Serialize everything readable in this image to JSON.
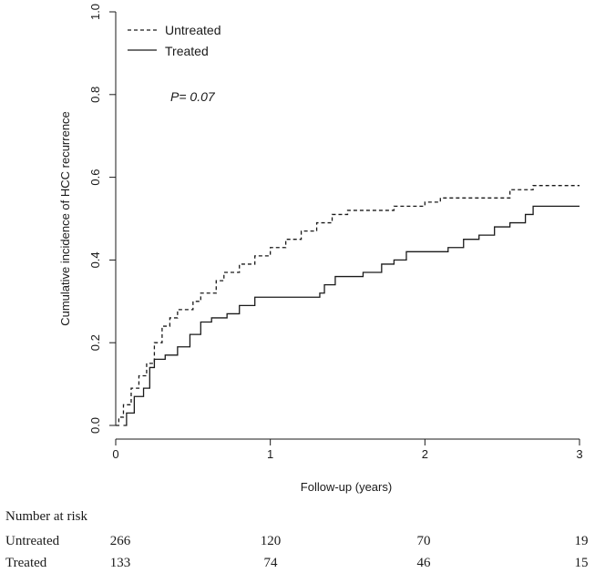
{
  "chart_data": {
    "type": "line",
    "xlabel": "Follow-up (years)",
    "ylabel": "Cumulative incidence of HCC recurrence",
    "xlim": [
      0,
      3
    ],
    "ylim": [
      0,
      1.0
    ],
    "x_ticks": [
      0,
      1,
      2,
      3
    ],
    "y_ticks": [
      0.0,
      0.2,
      0.4,
      0.6,
      0.8,
      1.0
    ],
    "x_tick_labels": [
      "0",
      "1",
      "2",
      "3"
    ],
    "y_tick_labels": [
      "0.0",
      "0.2",
      "0.4",
      "0.6",
      "0.8",
      "1.0"
    ],
    "grid": false,
    "legend_position": "top-left",
    "annotation": "P= 0.07",
    "series": [
      {
        "name": "Untreated",
        "line_style": "dashed",
        "points": [
          [
            0.0,
            0.0
          ],
          [
            0.02,
            0.02
          ],
          [
            0.05,
            0.05
          ],
          [
            0.1,
            0.09
          ],
          [
            0.15,
            0.12
          ],
          [
            0.2,
            0.15
          ],
          [
            0.25,
            0.2
          ],
          [
            0.3,
            0.24
          ],
          [
            0.35,
            0.26
          ],
          [
            0.4,
            0.28
          ],
          [
            0.5,
            0.3
          ],
          [
            0.55,
            0.32
          ],
          [
            0.65,
            0.35
          ],
          [
            0.7,
            0.37
          ],
          [
            0.8,
            0.39
          ],
          [
            0.9,
            0.41
          ],
          [
            1.0,
            0.43
          ],
          [
            1.1,
            0.45
          ],
          [
            1.2,
            0.47
          ],
          [
            1.3,
            0.49
          ],
          [
            1.4,
            0.51
          ],
          [
            1.5,
            0.52
          ],
          [
            1.6,
            0.52
          ],
          [
            1.8,
            0.53
          ],
          [
            1.95,
            0.53
          ],
          [
            2.0,
            0.54
          ],
          [
            2.1,
            0.55
          ],
          [
            2.35,
            0.55
          ],
          [
            2.5,
            0.55
          ],
          [
            2.55,
            0.57
          ],
          [
            2.7,
            0.58
          ],
          [
            3.0,
            0.58
          ]
        ]
      },
      {
        "name": "Treated",
        "line_style": "solid",
        "points": [
          [
            0.05,
            0.0
          ],
          [
            0.07,
            0.03
          ],
          [
            0.12,
            0.07
          ],
          [
            0.18,
            0.09
          ],
          [
            0.22,
            0.14
          ],
          [
            0.25,
            0.16
          ],
          [
            0.32,
            0.17
          ],
          [
            0.4,
            0.19
          ],
          [
            0.48,
            0.22
          ],
          [
            0.55,
            0.25
          ],
          [
            0.62,
            0.26
          ],
          [
            0.72,
            0.27
          ],
          [
            0.8,
            0.29
          ],
          [
            0.9,
            0.31
          ],
          [
            1.0,
            0.31
          ],
          [
            1.15,
            0.31
          ],
          [
            1.32,
            0.32
          ],
          [
            1.35,
            0.34
          ],
          [
            1.42,
            0.36
          ],
          [
            1.6,
            0.37
          ],
          [
            1.72,
            0.39
          ],
          [
            1.8,
            0.4
          ],
          [
            1.88,
            0.42
          ],
          [
            2.05,
            0.42
          ],
          [
            2.15,
            0.43
          ],
          [
            2.25,
            0.45
          ],
          [
            2.35,
            0.46
          ],
          [
            2.45,
            0.48
          ],
          [
            2.55,
            0.49
          ],
          [
            2.65,
            0.51
          ],
          [
            2.7,
            0.53
          ],
          [
            3.0,
            0.53
          ]
        ]
      }
    ],
    "risk_table": {
      "title": "Number at risk",
      "rows": [
        {
          "label": "Untreated",
          "values": [
            "266",
            "120",
            "70",
            "19"
          ]
        },
        {
          "label": "Treated",
          "values": [
            "133",
            "74",
            "46",
            "15"
          ]
        }
      ]
    }
  }
}
